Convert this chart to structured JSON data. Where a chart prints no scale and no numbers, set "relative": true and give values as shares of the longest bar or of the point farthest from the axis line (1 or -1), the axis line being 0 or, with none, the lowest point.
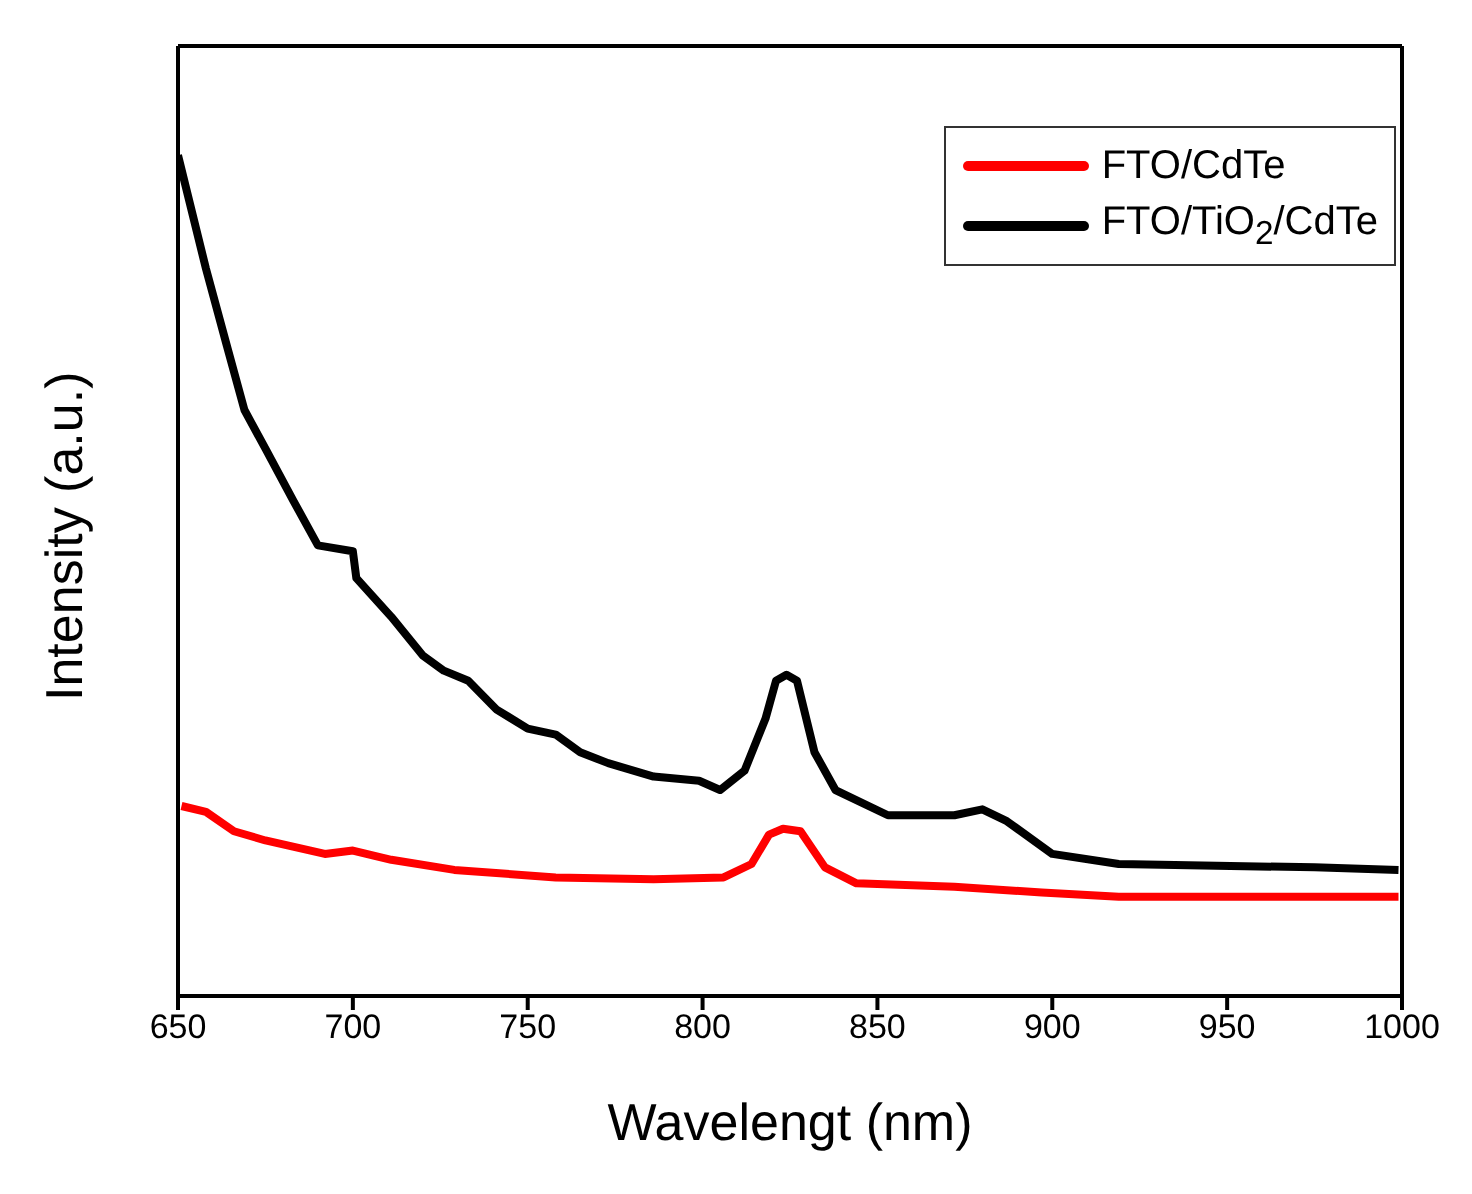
{
  "chart_data": {
    "type": "line",
    "relative": true,
    "xlabel": "Wavelengt (nm)",
    "ylabel": "Intensity (a.u.)",
    "xlim": [
      650,
      1000
    ],
    "xticks": [
      650,
      700,
      750,
      800,
      850,
      900,
      950,
      1000
    ],
    "legend": "top right",
    "marker": "none",
    "line_style": "solid",
    "series": [
      {
        "name": "FTO/CdTe",
        "color": "#ff0000",
        "x": [
          651,
          658,
          666,
          675,
          692,
          700,
          711,
          729,
          758,
          786,
          806,
          814,
          819,
          823,
          828,
          835,
          844,
          872,
          897,
          919,
          999
        ],
        "values": [
          0.226,
          0.219,
          0.196,
          0.185,
          0.169,
          0.173,
          0.162,
          0.15,
          0.141,
          0.139,
          0.141,
          0.157,
          0.192,
          0.199,
          0.196,
          0.153,
          0.134,
          0.13,
          0.123,
          0.118,
          0.118
        ]
      },
      {
        "name": "FTO/TiO$_{2}$/CdTe",
        "color": "#000000",
        "x": [
          650,
          658,
          664,
          669,
          675,
          683,
          690,
          700,
          701,
          711,
          720,
          726,
          733,
          741,
          750,
          758,
          765,
          773,
          786,
          799,
          805,
          812,
          818,
          821,
          824,
          827,
          832,
          838,
          853,
          872,
          880,
          887,
          900,
          919,
          947,
          975,
          999
        ],
        "values": [
          1.0,
          0.865,
          0.773,
          0.697,
          0.651,
          0.589,
          0.536,
          0.529,
          0.497,
          0.451,
          0.405,
          0.387,
          0.375,
          0.341,
          0.318,
          0.311,
          0.29,
          0.277,
          0.261,
          0.256,
          0.245,
          0.268,
          0.33,
          0.375,
          0.382,
          0.375,
          0.29,
          0.245,
          0.215,
          0.215,
          0.222,
          0.208,
          0.169,
          0.157,
          0.155,
          0.153,
          0.15
        ]
      }
    ]
  }
}
